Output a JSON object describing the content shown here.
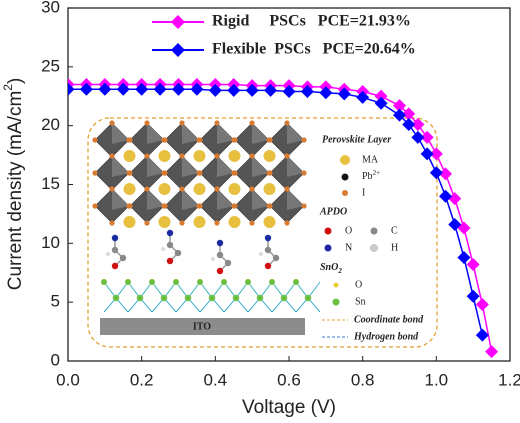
{
  "chart_data": {
    "type": "line",
    "xlabel": "Voltage (V)",
    "ylabel": {
      "text": "Current density (mA/cm",
      "sup": "2",
      "end": ")"
    },
    "x": [
      0,
      0.05,
      0.1,
      0.15,
      0.2,
      0.25,
      0.3,
      0.35,
      0.4,
      0.45,
      0.5,
      0.55,
      0.6,
      0.65,
      0.7,
      0.75,
      0.8,
      0.85,
      0.9,
      0.925,
      0.95,
      0.975,
      1.0,
      1.025,
      1.05,
      1.075,
      1.1,
      1.125,
      1.15
    ],
    "series": [
      {
        "name": "Rigid     PSCs   PCE=21.93%",
        "color": "#ff00ff",
        "values": [
          23.5,
          23.5,
          23.5,
          23.5,
          23.5,
          23.5,
          23.5,
          23.5,
          23.5,
          23.5,
          23.4,
          23.4,
          23.4,
          23.3,
          23.3,
          23.1,
          22.9,
          22.5,
          21.7,
          21.0,
          20.1,
          19.0,
          17.6,
          15.9,
          13.8,
          11.3,
          8.2,
          4.8,
          0.8
        ]
      },
      {
        "name": "Flexible  PSCs   PCE=20.64%",
        "color": "#0000ff",
        "values": [
          23.1,
          23.1,
          23.1,
          23.1,
          23.1,
          23.1,
          23.1,
          23.1,
          23.0,
          23.0,
          23.0,
          23.0,
          22.9,
          22.9,
          22.8,
          22.7,
          22.4,
          21.9,
          20.9,
          20.1,
          19.0,
          17.6,
          16.0,
          14.0,
          11.6,
          8.8,
          5.5,
          2.2,
          null
        ]
      }
    ],
    "xlim": [
      0,
      1.2
    ],
    "xticks": [
      {
        "value": 0,
        "label": "0.0"
      },
      0.2,
      0.4,
      0.6,
      0.8,
      {
        "value": 1,
        "label": "1.0"
      },
      1.2
    ],
    "ylim": [
      0,
      30
    ],
    "yticks": [
      0,
      5,
      10,
      15,
      20,
      25,
      30
    ],
    "inset": {
      "perovskite": "Perovskite Layer",
      "ma": "MA",
      "pb": {
        "text": "Pb",
        "sup": "2+"
      },
      "iodine": "I",
      "apdo": "APDO",
      "o1": "O",
      "c": "C",
      "n": "N",
      "h": "H",
      "sno2": {
        "text": "SnO",
        "sub": "2"
      },
      "o2": "O",
      "sn": "Sn",
      "coord": "Coordinate bond",
      "hbond": "Hydrogen bond",
      "ito": "ITO"
    }
  }
}
